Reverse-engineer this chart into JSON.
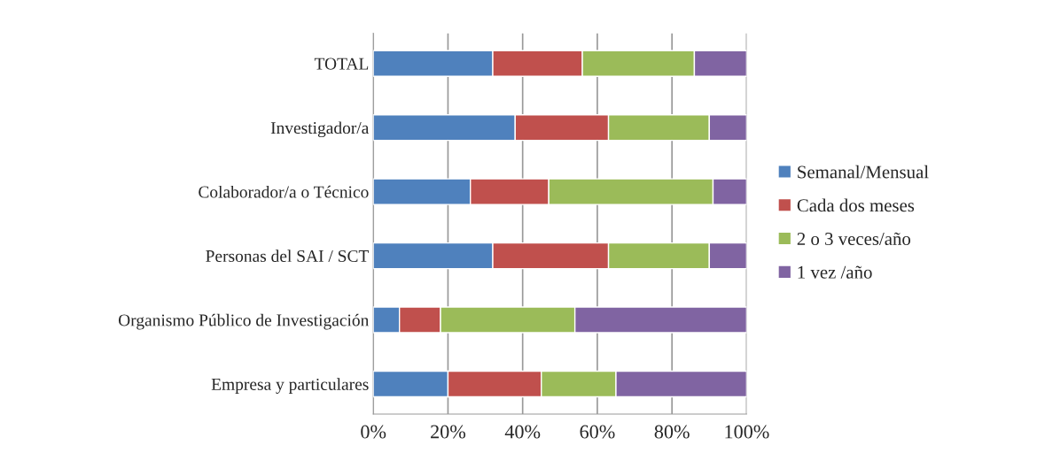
{
  "chart_data": {
    "type": "bar",
    "orientation": "horizontal",
    "stacked": true,
    "categories": [
      "TOTAL",
      "Investigador/a",
      "Colaborador/a o Técnico",
      "Personas del SAI / SCT",
      "Organismo Público de Investigación",
      "Empresa y particulares"
    ],
    "series": [
      {
        "name": "Semanal/Mensual",
        "color": "#4f81bd",
        "values": [
          32,
          38,
          26,
          32,
          7,
          20
        ]
      },
      {
        "name": "Cada dos meses",
        "color": "#c0504d",
        "values": [
          24,
          25,
          21,
          31,
          11,
          25
        ]
      },
      {
        "name": "2 o 3 veces/año",
        "color": "#9bbb59",
        "values": [
          30,
          27,
          44,
          27,
          36,
          20
        ]
      },
      {
        "name": "1 vez /año",
        "color": "#8064a2",
        "values": [
          14,
          10,
          9,
          10,
          46,
          35
        ]
      }
    ],
    "xlim": [
      0,
      100
    ],
    "xticks": [
      {
        "value": 0,
        "label": "0%"
      },
      {
        "value": 20,
        "label": "20%"
      },
      {
        "value": 40,
        "label": "40%"
      },
      {
        "value": 60,
        "label": "60%"
      },
      {
        "value": 80,
        "label": "80%"
      },
      {
        "value": 100,
        "label": "100%"
      }
    ],
    "grid": "x",
    "legend": "right"
  }
}
